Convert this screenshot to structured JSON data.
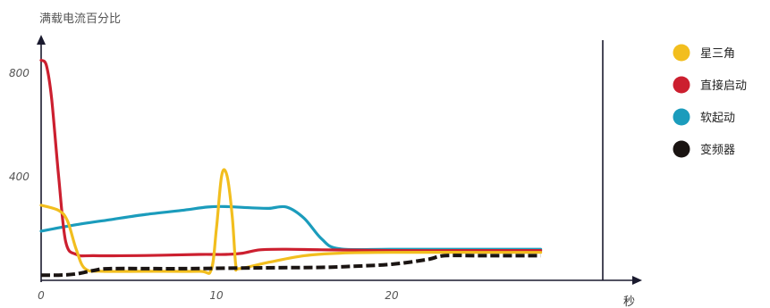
{
  "chart_data": {
    "type": "line",
    "ylabel": "满载电流百分比",
    "xlabel": "秒",
    "xlim": [
      0,
      30
    ],
    "ylim": [
      0,
      900
    ],
    "xticks": [
      0,
      10,
      20
    ],
    "yticks": [
      400,
      800
    ],
    "legend_position": "right",
    "series": [
      {
        "name": "星三角",
        "color": "#F2BE1E",
        "dash": "solid",
        "points": [
          [
            0,
            290
          ],
          [
            1,
            270
          ],
          [
            1.5,
            230
          ],
          [
            2,
            120
          ],
          [
            2.5,
            45
          ],
          [
            3.5,
            35
          ],
          [
            6,
            35
          ],
          [
            9,
            35
          ],
          [
            9.7,
            40
          ],
          [
            10,
            200
          ],
          [
            10.3,
            405
          ],
          [
            10.6,
            405
          ],
          [
            10.9,
            250
          ],
          [
            11.1,
            60
          ],
          [
            11.3,
            45
          ],
          [
            13,
            70
          ],
          [
            15,
            95
          ],
          [
            17,
            105
          ],
          [
            20,
            108
          ],
          [
            25,
            108
          ],
          [
            28.5,
            108
          ]
        ]
      },
      {
        "name": "直接启动",
        "color": "#CC1F2F",
        "dash": "solid",
        "points": [
          [
            0,
            850
          ],
          [
            0.3,
            830
          ],
          [
            0.6,
            700
          ],
          [
            1,
            400
          ],
          [
            1.4,
            150
          ],
          [
            2,
            100
          ],
          [
            3,
            95
          ],
          [
            6,
            96
          ],
          [
            9,
            100
          ],
          [
            10.5,
            100
          ],
          [
            11.5,
            105
          ],
          [
            12.5,
            118
          ],
          [
            14,
            120
          ],
          [
            16,
            118
          ],
          [
            20,
            115
          ],
          [
            25,
            115
          ],
          [
            28.5,
            115
          ]
        ]
      },
      {
        "name": "软起动",
        "color": "#1B9CBC",
        "dash": "solid",
        "points": [
          [
            0,
            190
          ],
          [
            2,
            215
          ],
          [
            4,
            235
          ],
          [
            6,
            255
          ],
          [
            8,
            270
          ],
          [
            9.5,
            283
          ],
          [
            10.5,
            285
          ],
          [
            12,
            280
          ],
          [
            13,
            278
          ],
          [
            14,
            283
          ],
          [
            15,
            240
          ],
          [
            16,
            160
          ],
          [
            17,
            122
          ],
          [
            20,
            120
          ],
          [
            25,
            120
          ],
          [
            28.5,
            120
          ]
        ]
      },
      {
        "name": "变频器",
        "color": "#1A1412",
        "dash": "dashed",
        "points": [
          [
            0,
            20
          ],
          [
            1,
            20
          ],
          [
            2,
            25
          ],
          [
            3,
            38
          ],
          [
            4,
            45
          ],
          [
            8,
            45
          ],
          [
            12,
            48
          ],
          [
            16,
            50
          ],
          [
            18,
            55
          ],
          [
            20,
            62
          ],
          [
            22,
            80
          ],
          [
            23,
            95
          ],
          [
            25,
            95
          ],
          [
            28.5,
            95
          ]
        ]
      }
    ]
  }
}
